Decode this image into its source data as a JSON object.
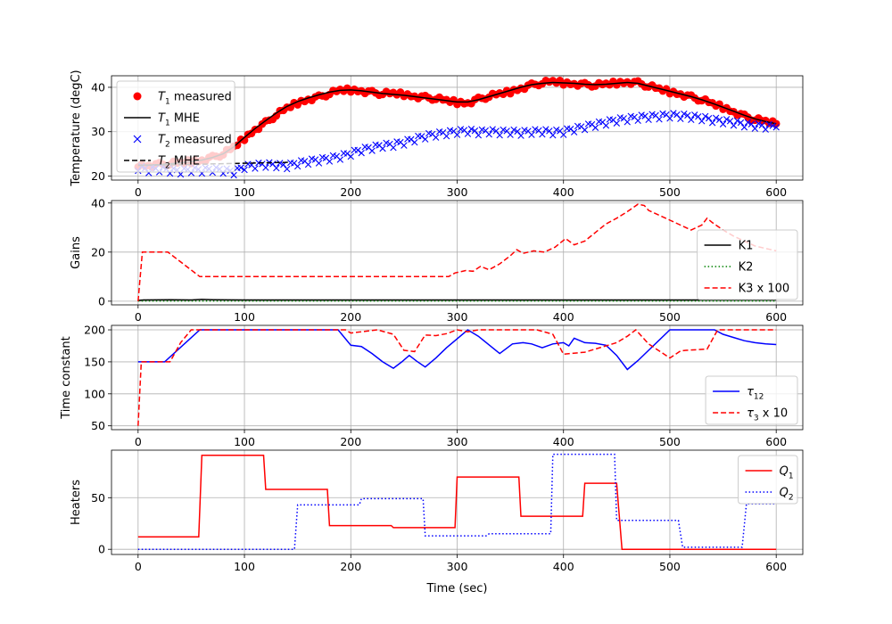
{
  "chart_data": [
    {
      "type": "line",
      "ylabel": "Temperature (degC)",
      "xlim": [
        -25,
        625
      ],
      "ylim": [
        19.1,
        42.6
      ],
      "xticks": [
        0,
        100,
        200,
        300,
        400,
        500,
        600
      ],
      "yticks": [
        20,
        30,
        40
      ],
      "grid": true,
      "legend_position": "upper-left",
      "series": [
        {
          "name": "T1 measured",
          "name_main": "T",
          "name_sub": "1",
          "name_rest": " measured",
          "style": "scatter-dot",
          "color": "#ff0000",
          "x": [
            0,
            10,
            20,
            30,
            40,
            50,
            60,
            70,
            80,
            90,
            100,
            110,
            120,
            130,
            140,
            150,
            160,
            170,
            180,
            190,
            200,
            210,
            220,
            230,
            240,
            250,
            260,
            270,
            280,
            290,
            300,
            310,
            320,
            330,
            340,
            350,
            360,
            370,
            380,
            390,
            400,
            410,
            420,
            430,
            440,
            450,
            460,
            470,
            480,
            490,
            500,
            510,
            520,
            530,
            540,
            550,
            560,
            570,
            580,
            590,
            600
          ],
          "y": [
            22.5,
            22.4,
            22.6,
            22.8,
            23.0,
            23.3,
            23.6,
            24.2,
            25.0,
            26.5,
            28.5,
            30.5,
            32.0,
            33.8,
            35.3,
            36.5,
            37.3,
            37.8,
            38.6,
            39.3,
            39.4,
            39.2,
            38.8,
            38.6,
            38.6,
            38.4,
            38.0,
            37.7,
            37.5,
            37.0,
            36.6,
            36.5,
            37.3,
            38.0,
            38.5,
            39.0,
            39.8,
            40.5,
            41.0,
            41.3,
            41.0,
            40.8,
            40.6,
            40.5,
            40.7,
            41.0,
            41.2,
            41.0,
            40.3,
            39.6,
            39.0,
            38.5,
            37.8,
            37.2,
            36.3,
            35.5,
            34.5,
            33.5,
            32.8,
            32.3,
            31.8
          ]
        },
        {
          "name": "T1 MHE",
          "name_main": "T",
          "name_sub": "1",
          "name_rest": " MHE",
          "style": "solid",
          "color": "#000000",
          "x": [
            0,
            10,
            20,
            30,
            40,
            50,
            60,
            70,
            80,
            90,
            100,
            110,
            120,
            130,
            140,
            150,
            160,
            170,
            180,
            190,
            200,
            210,
            220,
            230,
            240,
            250,
            260,
            270,
            280,
            290,
            300,
            310,
            320,
            330,
            340,
            350,
            360,
            370,
            380,
            390,
            400,
            410,
            420,
            430,
            440,
            450,
            460,
            470,
            480,
            490,
            500,
            510,
            520,
            530,
            540,
            550,
            560,
            570,
            580,
            590,
            600
          ],
          "y": [
            22.5,
            22.5,
            22.6,
            22.8,
            23.0,
            23.3,
            23.6,
            24.2,
            25.0,
            26.6,
            28.7,
            30.7,
            32.5,
            34.2,
            35.7,
            36.8,
            37.6,
            38.3,
            38.9,
            39.3,
            39.4,
            39.2,
            38.9,
            38.6,
            38.4,
            38.2,
            37.9,
            37.6,
            37.3,
            37.0,
            36.7,
            36.7,
            37.2,
            37.9,
            38.6,
            39.3,
            40.0,
            40.6,
            40.9,
            41.1,
            41.0,
            40.9,
            40.7,
            40.6,
            40.7,
            40.9,
            41.1,
            40.9,
            40.3,
            39.7,
            39.1,
            38.5,
            37.9,
            37.2,
            36.4,
            35.5,
            34.6,
            33.7,
            32.9,
            32.3,
            31.8
          ]
        },
        {
          "name": "T2 measured",
          "name_main": "T",
          "name_sub": "2",
          "name_rest": " measured",
          "style": "scatter-x",
          "color": "#0000ff",
          "x": [
            0,
            10,
            20,
            30,
            40,
            50,
            60,
            70,
            80,
            90,
            100,
            110,
            120,
            130,
            140,
            150,
            160,
            170,
            180,
            190,
            200,
            210,
            220,
            230,
            240,
            250,
            260,
            270,
            280,
            290,
            300,
            310,
            320,
            330,
            340,
            350,
            360,
            370,
            380,
            390,
            400,
            410,
            420,
            430,
            440,
            450,
            460,
            470,
            480,
            490,
            500,
            510,
            520,
            530,
            540,
            550,
            560,
            570,
            580,
            590,
            600
          ],
          "y": [
            21.8,
            21.3,
            21.5,
            21.2,
            21.0,
            21.3,
            21.2,
            21.4,
            21.2,
            20.8,
            22.0,
            22.3,
            22.5,
            22.4,
            22.2,
            22.8,
            23.2,
            23.5,
            23.9,
            24.3,
            25.0,
            25.8,
            26.3,
            26.8,
            27.0,
            27.5,
            28.2,
            28.9,
            29.3,
            29.6,
            29.9,
            30.1,
            29.8,
            30.0,
            29.8,
            29.9,
            29.7,
            29.9,
            30.0,
            29.8,
            29.9,
            30.5,
            31.0,
            31.5,
            32.0,
            32.5,
            32.8,
            33.1,
            33.3,
            33.4,
            33.6,
            33.5,
            33.3,
            33.0,
            32.6,
            32.3,
            32.0,
            31.6,
            31.3,
            31.1,
            31.0
          ]
        },
        {
          "name": "T2 MHE",
          "name_main": "T",
          "name_sub": "2",
          "name_rest": " MHE",
          "style": "dashed",
          "color": "#000000",
          "x": [
            0,
            20,
            40,
            60,
            80,
            100,
            120,
            140,
            142
          ],
          "y": [
            22.4,
            22.5,
            22.6,
            22.7,
            22.8,
            22.9,
            23.0,
            23.1,
            23.2
          ]
        }
      ]
    },
    {
      "type": "line",
      "ylabel": "Gains",
      "xlim": [
        -25,
        625
      ],
      "ylim": [
        -1.5,
        41
      ],
      "xticks": [
        0,
        100,
        200,
        300,
        400,
        500,
        600
      ],
      "yticks": [
        0,
        20,
        40
      ],
      "grid": true,
      "legend_position": "lower-right",
      "series": [
        {
          "name": "K1",
          "name_main": "K1",
          "name_sub": "",
          "name_rest": "",
          "style": "solid",
          "color": "#000000",
          "x": [
            0,
            5,
            30,
            50,
            60,
            70,
            100,
            200,
            300,
            400,
            500,
            600
          ],
          "y": [
            0.3,
            0.5,
            0.6,
            0.5,
            0.7,
            0.6,
            0.5,
            0.5,
            0.5,
            0.5,
            0.5,
            0.5
          ]
        },
        {
          "name": "K2",
          "name_main": "K2",
          "name_sub": "",
          "name_rest": "",
          "style": "dotted",
          "color": "#008000",
          "x": [
            0,
            100,
            200,
            300,
            400,
            500,
            600
          ],
          "y": [
            0.1,
            0.1,
            0.1,
            0.1,
            0.1,
            0.1,
            0.1
          ]
        },
        {
          "name": "K3 x 100",
          "name_main": "K3 x 100",
          "name_sub": "",
          "name_rest": "",
          "style": "dashed",
          "color": "#ff0000",
          "x": [
            0,
            4,
            28,
            58,
            100,
            150,
            200,
            250,
            292,
            298,
            308,
            315,
            322,
            330,
            340,
            350,
            356,
            362,
            372,
            382,
            392,
            402,
            410,
            420,
            430,
            440,
            450,
            460,
            470,
            476,
            480,
            490,
            500,
            510,
            520,
            530,
            535,
            540,
            550,
            560,
            570,
            580,
            590,
            600
          ],
          "y": [
            0,
            20,
            20,
            10,
            10,
            10,
            10,
            10,
            10,
            11.5,
            12.5,
            12.2,
            14.2,
            12.8,
            15.2,
            18.5,
            21,
            19.5,
            20.5,
            20.0,
            22,
            25.5,
            23,
            24.5,
            28,
            31.5,
            33.8,
            36.5,
            39.5,
            39,
            37,
            35,
            33,
            31,
            29,
            31,
            33.8,
            32,
            29,
            26.5,
            24.5,
            22.5,
            21.5,
            20.5
          ]
        }
      ]
    },
    {
      "type": "line",
      "ylabel": "Time constant",
      "xlim": [
        -25,
        625
      ],
      "ylim": [
        44,
        207
      ],
      "xticks": [
        0,
        100,
        200,
        300,
        400,
        500,
        600
      ],
      "yticks": [
        50,
        100,
        150,
        200
      ],
      "grid": true,
      "legend_position": "lower-right",
      "series": [
        {
          "name": "τ12",
          "name_main": "τ",
          "name_sub": "12",
          "name_rest": "",
          "style": "solid",
          "color": "#0000ff",
          "x": [
            0,
            25,
            58,
            100,
            150,
            188,
            200,
            210,
            220,
            230,
            240,
            248,
            255,
            262,
            270,
            280,
            290,
            310,
            320,
            340,
            352,
            362,
            370,
            380,
            390,
            400,
            405,
            410,
            420,
            430,
            440,
            450,
            460,
            470,
            480,
            500,
            542,
            550,
            560,
            570,
            580,
            590,
            600
          ],
          "y": [
            150,
            150,
            200,
            200,
            200,
            200,
            176,
            174,
            163,
            150,
            140,
            150,
            160,
            151,
            142,
            156,
            172,
            200,
            190,
            163,
            178,
            180,
            178,
            172,
            178,
            180,
            175,
            187,
            180,
            179,
            176,
            160,
            138,
            152,
            168,
            200,
            200,
            193,
            188,
            183,
            180,
            178,
            177
          ]
        },
        {
          "name": "τ3 x 10",
          "name_main": "τ",
          "name_sub": "3",
          "name_rest": " x 10",
          "style": "dashed",
          "color": "#ff0000",
          "x": [
            0,
            3,
            30,
            40,
            50,
            100,
            150,
            195,
            200,
            225,
            240,
            250,
            260,
            270,
            280,
            290,
            300,
            310,
            320,
            350,
            375,
            390,
            400,
            420,
            450,
            460,
            468,
            480,
            500,
            510,
            515,
            535,
            545,
            560,
            600
          ],
          "y": [
            50,
            150,
            150,
            180,
            200,
            200,
            200,
            200,
            195,
            200,
            193,
            168,
            166,
            192,
            191,
            194,
            200,
            197,
            200,
            200,
            200,
            193,
            162,
            165,
            180,
            190,
            200,
            178,
            156,
            167,
            168,
            170,
            200,
            200,
            200
          ]
        }
      ]
    },
    {
      "type": "line",
      "ylabel": "Heaters",
      "xlabel": "Time (sec)",
      "xlim": [
        -25,
        625
      ],
      "ylim": [
        -5,
        96
      ],
      "xticks": [
        0,
        100,
        200,
        300,
        400,
        500,
        600
      ],
      "yticks": [
        0,
        50
      ],
      "grid": true,
      "legend_position": "upper-right",
      "series": [
        {
          "name": "Q1",
          "name_main": "Q",
          "name_sub": "1",
          "name_rest": "",
          "style": "solid",
          "color": "#ff0000",
          "x": [
            0,
            57,
            60,
            118,
            120,
            178,
            180,
            238,
            240,
            298,
            300,
            358,
            360,
            418,
            420,
            450,
            455,
            600
          ],
          "y": [
            12,
            12,
            91,
            91,
            58,
            58,
            23,
            23,
            21,
            21,
            70,
            70,
            32,
            32,
            64,
            64,
            0,
            0
          ]
        },
        {
          "name": "Q2",
          "name_main": "Q",
          "name_sub": "2",
          "name_rest": "",
          "style": "dotted",
          "color": "#0000ff",
          "x": [
            0,
            147,
            150,
            208,
            210,
            268,
            270,
            328,
            330,
            388,
            390,
            448,
            450,
            508,
            512,
            568,
            572,
            600
          ],
          "y": [
            0,
            0,
            43,
            43,
            49,
            49,
            13,
            13,
            15,
            15,
            92,
            92,
            28,
            28,
            2,
            2,
            44,
            44
          ]
        }
      ]
    }
  ]
}
